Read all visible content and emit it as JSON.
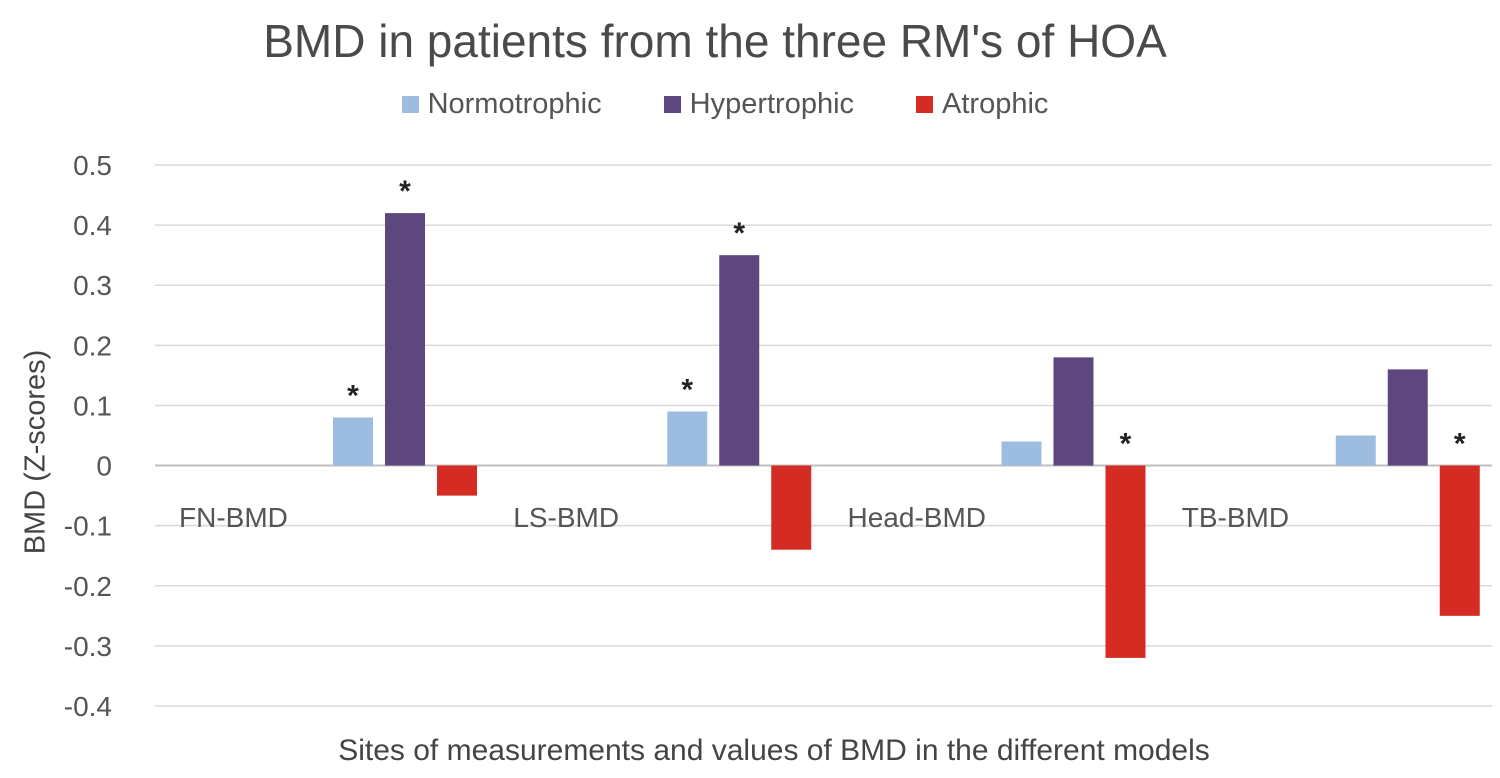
{
  "chart_data": {
    "type": "bar",
    "title": "BMD in patients from the three RM's of HOA",
    "xlabel": "Sites of measurements and values of BMD in the different models",
    "ylabel": "BMD (Z-scores)",
    "ylim": [
      -0.4,
      0.5
    ],
    "yticks": [
      "0.5",
      "0.4",
      "0.3",
      "0.2",
      "0.1",
      "0",
      "-0.1",
      "-0.2",
      "-0.3",
      "-0.4"
    ],
    "grid": true,
    "legend_position": "top",
    "categories": [
      "FN-BMD",
      "LS-BMD",
      "Head-BMD",
      "TB-BMD"
    ],
    "series": [
      {
        "name": "Normotrophic",
        "color": "#9dbde0",
        "values": [
          0.08,
          0.09,
          0.04,
          0.05
        ],
        "significant": [
          true,
          true,
          false,
          false
        ]
      },
      {
        "name": "Hypertrophic",
        "color": "#5e477f",
        "values": [
          0.42,
          0.35,
          0.18,
          0.16
        ],
        "significant": [
          true,
          true,
          false,
          false
        ]
      },
      {
        "name": "Atrophic",
        "color": "#d42b23",
        "values": [
          -0.05,
          -0.14,
          -0.32,
          -0.25
        ],
        "significant": [
          false,
          false,
          true,
          true
        ]
      }
    ],
    "significance_marker": "*"
  }
}
